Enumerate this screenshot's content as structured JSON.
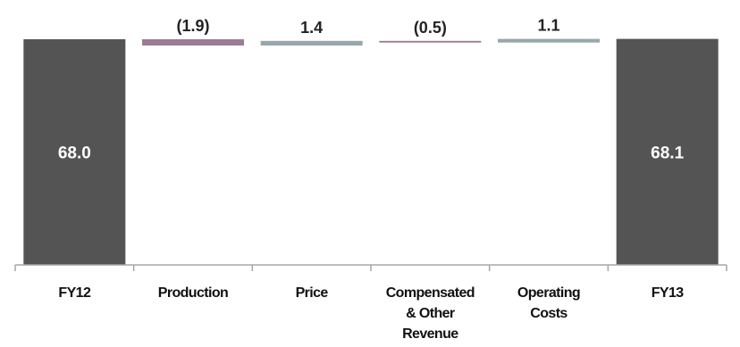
{
  "chart_data": {
    "type": "bar",
    "subtype": "waterfall",
    "categories": [
      [
        "FY12"
      ],
      [
        "Production"
      ],
      [
        "Price"
      ],
      [
        "Compensated",
        "& Other",
        "Revenue"
      ],
      [
        "Operating",
        "Costs"
      ],
      [
        "FY13"
      ]
    ],
    "values": [
      68.0,
      -1.9,
      1.4,
      -0.5,
      1.1,
      68.1
    ],
    "value_labels": [
      "68.0",
      "(1.9)",
      "1.4",
      "(0.5)",
      "1.1",
      "68.1"
    ],
    "bar_kinds": [
      "total",
      "decrease",
      "increase",
      "decrease",
      "increase",
      "total"
    ],
    "colors": {
      "total": "#545454",
      "decrease": "#9c7b96",
      "increase": "#96a7ad",
      "axis": "#a6a6a6"
    },
    "ylim": [
      0,
      68.8
    ],
    "grid": false,
    "legend": "none",
    "title": "",
    "xlabel": "",
    "ylabel": ""
  }
}
